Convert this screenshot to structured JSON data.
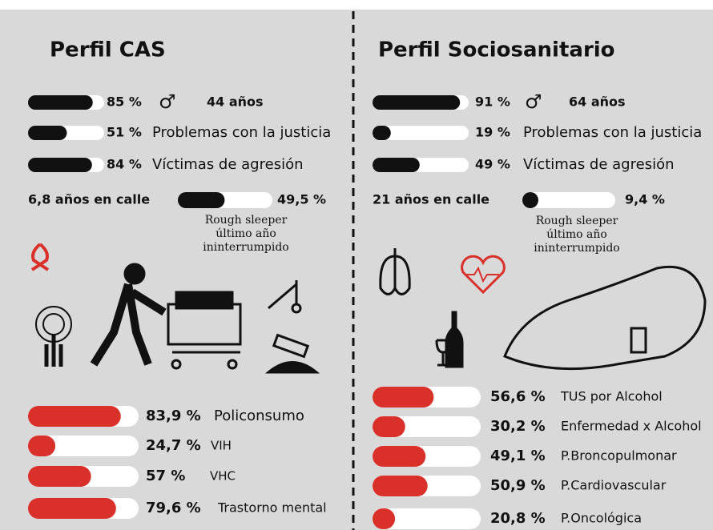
{
  "xlim": [
    0,
    100
  ],
  "left": {
    "title": "Perfil CAS",
    "stats": [
      {
        "value": 85,
        "label": "85 %",
        "symbol": "♂",
        "text": "44 años"
      },
      {
        "value": 51,
        "label": "51 %",
        "text": "Problemas con la justicia"
      },
      {
        "value": 84,
        "label": "84 %",
        "text": "Víctimas de agresión"
      }
    ],
    "street": {
      "text": "6,8 años en calle",
      "value": 49.5,
      "label": "49,5 %",
      "note": [
        "Rough sleeper",
        "último año",
        "ininterrumpido"
      ]
    },
    "health": [
      {
        "value": 83.9,
        "label": "83,9 %",
        "text": "Policonsumo"
      },
      {
        "value": 24.7,
        "label": "24,7 %",
        "text": "VIH"
      },
      {
        "value": 57,
        "label": "57 %",
        "text": "VHC"
      },
      {
        "value": 79.6,
        "label": "79,6 %",
        "text": "Trastorno mental"
      }
    ]
  },
  "right": {
    "title": "Perfil Sociosanitario",
    "stats": [
      {
        "value": 91,
        "label": "91 %",
        "symbol": "♂",
        "text": "64 años"
      },
      {
        "value": 19,
        "label": "19 %",
        "text": "Problemas con la justicia"
      },
      {
        "value": 49,
        "label": "49 %",
        "text": "Víctimas de agresión"
      }
    ],
    "street": {
      "text": "21 años en calle",
      "value": 9.4,
      "label": "9,4 %",
      "note": [
        "Rough sleeper",
        "último año",
        "ininterrumpido"
      ]
    },
    "health": [
      {
        "value": 56.6,
        "label": "56,6 %",
        "text": "TUS por Alcohol"
      },
      {
        "value": 30.2,
        "label": "30,2 %",
        "text": "Enfermedad x Alcohol"
      },
      {
        "value": 49.1,
        "label": "49,1 %",
        "text": "P.Broncopulmonar"
      },
      {
        "value": 50.9,
        "label": "50,9 %",
        "text": "P.Cardiovascular"
      },
      {
        "value": 20.8,
        "label": "20,8 %",
        "text": "P.Oncológica"
      }
    ]
  }
}
